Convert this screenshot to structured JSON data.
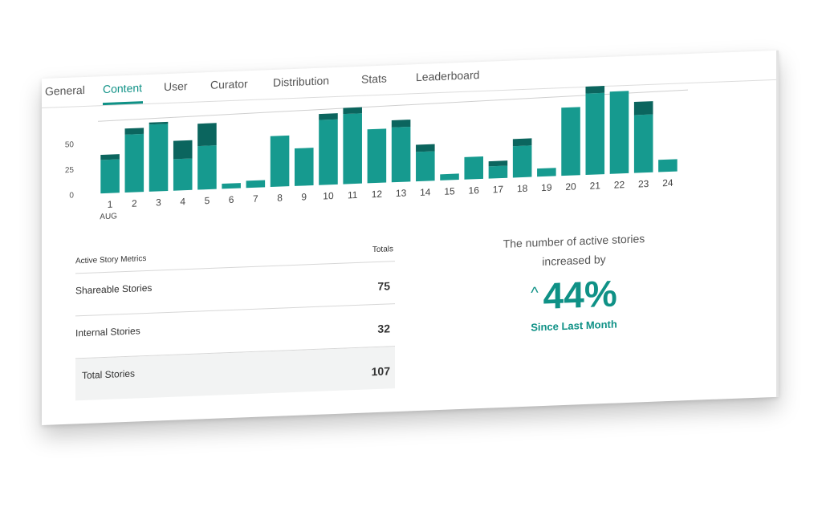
{
  "tabs": [
    "General",
    "Content",
    "User",
    "Curator",
    "Distribution",
    "Stats",
    "Leaderboard"
  ],
  "active_tab": "Content",
  "colors": {
    "accent": "#0f9186",
    "bar_light": "#169a8f",
    "bar_dark": "#0b655e"
  },
  "chart_data": {
    "type": "bar",
    "categories": [
      "1",
      "2",
      "3",
      "4",
      "5",
      "6",
      "7",
      "8",
      "9",
      "10",
      "11",
      "12",
      "13",
      "14",
      "15",
      "16",
      "17",
      "18",
      "19",
      "20",
      "21",
      "22",
      "23",
      "24"
    ],
    "x_sub_label": "AUG",
    "series": [
      {
        "values": [
          33,
          57,
          66,
          31,
          43,
          5,
          7,
          50,
          37,
          64,
          69,
          53,
          54,
          29,
          6,
          22,
          12,
          31,
          8,
          67,
          80,
          81,
          57,
          12
        ]
      },
      {
        "values": [
          5,
          6,
          2,
          18,
          22,
          0,
          0,
          0,
          0,
          6,
          6,
          0,
          7,
          7,
          0,
          0,
          5,
          7,
          0,
          0,
          7,
          0,
          13,
          0
        ]
      }
    ],
    "yticks": [
      0,
      25,
      50
    ],
    "ylim": [
      0,
      75
    ]
  },
  "metrics": {
    "header_label": "Active Story Metrics",
    "header_value": "Totals",
    "rows": [
      {
        "label": "Shareable Stories",
        "value": "75"
      },
      {
        "label": "Internal Stories",
        "value": "32"
      },
      {
        "label": "Total Stories",
        "value": "107"
      }
    ]
  },
  "stat": {
    "line1": "The number of active stories",
    "line2": "increased by",
    "arrow": "^",
    "percent": "44%",
    "since": "Since Last Month"
  }
}
